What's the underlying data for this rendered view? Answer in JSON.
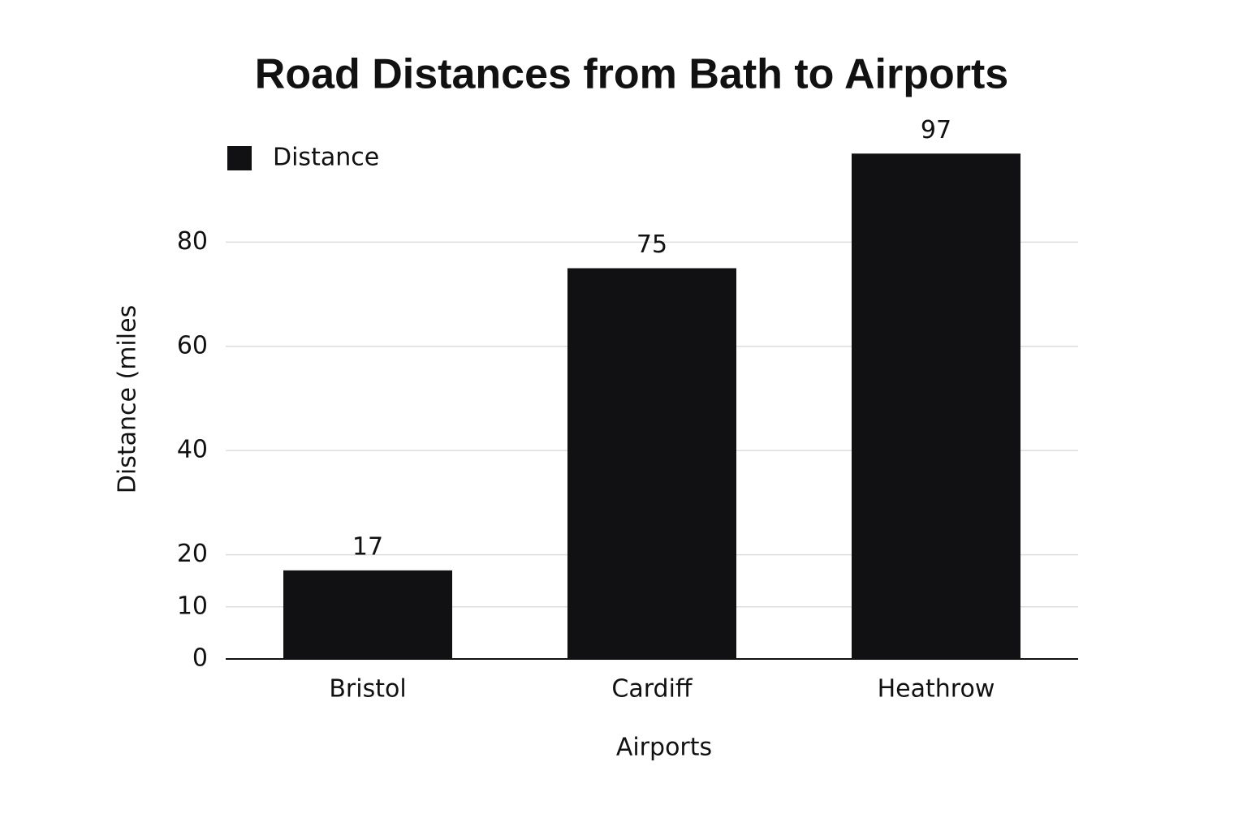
{
  "chart_data": {
    "type": "bar",
    "title": "Road Distances from Bath to Airports",
    "x_label": "Airports",
    "y_label": "Distance (miles",
    "categories": [
      "Bristol",
      "Cardiff",
      "Heathrow"
    ],
    "series": [
      {
        "name": "Distance",
        "color": "#111113",
        "values": [
          17,
          75,
          97
        ]
      }
    ],
    "ylim": [
      0,
      100
    ],
    "yticks": [
      0,
      10,
      20,
      40,
      60,
      80
    ],
    "grid": true,
    "legend": "top-left"
  }
}
